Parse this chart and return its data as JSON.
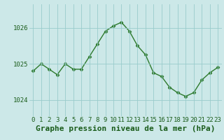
{
  "x": [
    0,
    1,
    2,
    3,
    4,
    5,
    6,
    7,
    8,
    9,
    10,
    11,
    12,
    13,
    14,
    15,
    16,
    17,
    18,
    19,
    20,
    21,
    22,
    23
  ],
  "y": [
    1024.8,
    1025.0,
    1024.85,
    1024.7,
    1025.0,
    1024.85,
    1024.85,
    1025.2,
    1025.55,
    1025.9,
    1026.05,
    1026.15,
    1025.9,
    1025.5,
    1025.25,
    1024.75,
    1024.65,
    1024.35,
    1024.2,
    1024.1,
    1024.2,
    1024.55,
    1024.75,
    1024.9
  ],
  "line_color": "#2d7a2d",
  "marker": "D",
  "marker_size": 2.5,
  "bg_color": "#cce8e8",
  "grid_color": "#99cccc",
  "xlabel": "Graphe pression niveau de la mer (hPa)",
  "xlabel_fontsize": 8,
  "xlabel_color": "#1a5c1a",
  "ytick_labels": [
    1024,
    1025,
    1026
  ],
  "ylim": [
    1023.55,
    1026.65
  ],
  "xlim": [
    -0.5,
    23.5
  ],
  "xtick_labels": [
    "0",
    "1",
    "2",
    "3",
    "4",
    "5",
    "6",
    "7",
    "8",
    "9",
    "10",
    "11",
    "12",
    "13",
    "14",
    "15",
    "16",
    "17",
    "18",
    "19",
    "20",
    "21",
    "22",
    "23"
  ],
  "tick_fontsize": 6.5,
  "tick_color": "#1a5c1a",
  "linewidth": 1.0
}
